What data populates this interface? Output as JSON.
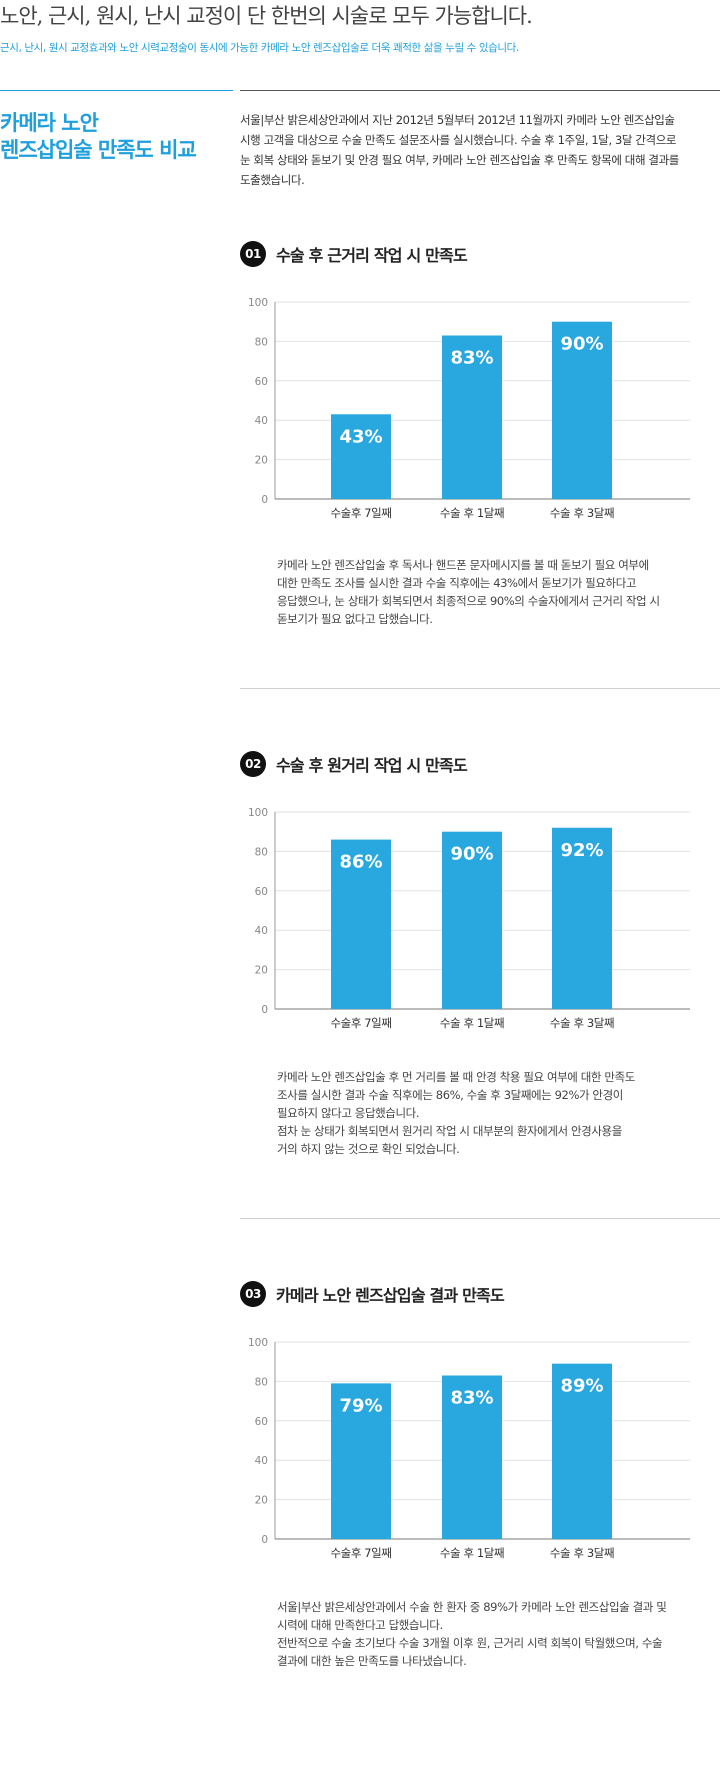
{
  "header": {
    "headline": "노안, 근시, 원시, 난시 교정이 단 한번의 시술로 모두 가능합니다.",
    "subline": "근시, 난시, 원시 교정효과와 노안 시력교정술이 동시에 가능한 카메라 노안 렌즈삽입술로 더욱 쾌적한 삶을 누릴 수 있습니다."
  },
  "side_title": [
    "카메라 노안",
    "렌즈삽입술 만족도 비교"
  ],
  "intro": [
    "서울|부산 밝은세상안과에서 지난 2012년 5월부터 2012년 11월까지 카메라 노안 렌즈삽입술",
    "시행 고객을 대상으로 수술 만족도 설문조사를 실시했습니다. 수술 후 1주일, 1달, 3달 간격으로",
    "눈 회복 상태와 돋보기 및 안경 필요 여부, 카메라 노안 렌즈삽입술 후 만족도 항목에 대해 결과를",
    "도출했습니다."
  ],
  "sections": [
    {
      "number": "01",
      "title": "수술 후 근거리 작업 시 만족도",
      "description": [
        "카메라 노안 렌즈삽입술 후 독서나 핸드폰 문자메시지를 볼 때 돋보기 필요 여부에",
        "대한 만족도 조사를 실시한 결과 수술 직후에는 43%에서 돋보기가 필요하다고",
        "응답했으나, 눈 상태가 회복되면서 최종적으로 90%의 수술자에게서 근거리 작업 시",
        "돋보기가 필요 없다고 답했습니다."
      ]
    },
    {
      "number": "02",
      "title": "수술 후 원거리 작업 시 만족도",
      "description": [
        "카메라 노안 렌즈삽입술 후 먼 거리를 볼 때 안경 착용 필요 여부에 대한 만족도",
        "조사를 실시한 결과 수술 직후에는 86%, 수술 후 3달째에는 92%가 안경이",
        "필요하지 않다고 응답했습니다.",
        "점차 눈 상태가 회복되면서 원거리 작업 시 대부분의 환자에게서 안경사용을",
        "거의 하지 않는 것으로 확인 되었습니다."
      ]
    },
    {
      "number": "03",
      "title": "카메라 노안 렌즈삽입술 결과 만족도",
      "description": [
        "서울|부산 밝은세상안과에서 수술 한 환자 중 89%가 카메라 노안 렌즈삽입술 결과 및",
        "시력에 대해 만족한다고 답했습니다.",
        "전반적으로 수술 초기보다 수술 3개월 이후 원, 근거리 시력 회복이 탁월했으며, 수술",
        "결과에 대한 높은 만족도를 나타냈습니다."
      ]
    }
  ],
  "chart_data": [
    {
      "type": "bar",
      "categories": [
        "수술후 7일째",
        "수술 후 1달째",
        "수술 후 3달째"
      ],
      "values": [
        43,
        83,
        90
      ],
      "data_labels": [
        "43%",
        "83%",
        "90%"
      ],
      "yticks": [
        "0",
        "20",
        "40",
        "60",
        "80",
        "100"
      ],
      "ylim": [
        0,
        100
      ],
      "grid": true,
      "bar_color": "#29a8e0"
    },
    {
      "type": "bar",
      "categories": [
        "수술후 7일째",
        "수술 후 1달째",
        "수술 후 3달째"
      ],
      "values": [
        86,
        90,
        92
      ],
      "data_labels": [
        "86%",
        "90%",
        "92%"
      ],
      "yticks": [
        "0",
        "20",
        "40",
        "60",
        "80",
        "100"
      ],
      "ylim": [
        0,
        100
      ],
      "grid": true,
      "bar_color": "#29a8e0"
    },
    {
      "type": "bar",
      "categories": [
        "수술후 7일째",
        "수술 후 1달째",
        "수술 후 3달째"
      ],
      "values": [
        79,
        83,
        89
      ],
      "data_labels": [
        "79%",
        "83%",
        "89%"
      ],
      "yticks": [
        "0",
        "20",
        "40",
        "60",
        "80",
        "100"
      ],
      "ylim": [
        0,
        100
      ],
      "grid": true,
      "bar_color": "#29a8e0"
    }
  ]
}
